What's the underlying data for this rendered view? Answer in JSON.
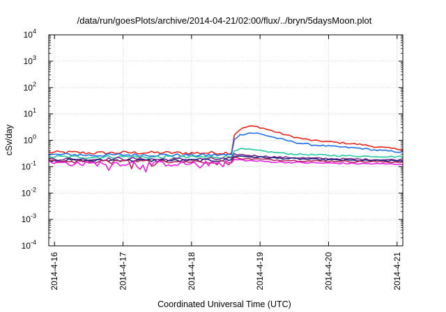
{
  "chart_data": {
    "type": "line",
    "title": "/data/run/goesPlots/archive/2014-04-21/02:00/flux/../bryn/5daysMoon.plot",
    "xlabel": "Coordinated Universal Time (UTC)",
    "ylabel": "cSv/day",
    "yscale": "log",
    "ylim": [
      0.0001,
      10000
    ],
    "y_ticks": [
      {
        "base": "10",
        "exp": "-4",
        "value": 0.0001
      },
      {
        "base": "10",
        "exp": "-3",
        "value": 0.001
      },
      {
        "base": "10",
        "exp": "-2",
        "value": 0.01
      },
      {
        "base": "10",
        "exp": "-1",
        "value": 0.1
      },
      {
        "base": "10",
        "exp": "0",
        "value": 1
      },
      {
        "base": "10",
        "exp": "1",
        "value": 10
      },
      {
        "base": "10",
        "exp": "2",
        "value": 100
      },
      {
        "base": "10",
        "exp": "3",
        "value": 1000
      },
      {
        "base": "10",
        "exp": "4",
        "value": 10000
      }
    ],
    "xlim": [
      "2014-04-15T22:00",
      "2014-04-21T02:00"
    ],
    "x_ticks": [
      {
        "label": "2014-4-16",
        "value": "2014-04-16T00:00"
      },
      {
        "label": "2014-4-17",
        "value": "2014-04-17T00:00"
      },
      {
        "label": "2014-4-18",
        "value": "2014-04-18T00:00"
      },
      {
        "label": "2014-4-19",
        "value": "2014-04-19T00:00"
      },
      {
        "label": "2014-4-20",
        "value": "2014-04-20T00:00"
      },
      {
        "label": "2014-4-21",
        "value": "2014-04-21T00:00"
      }
    ],
    "grid": true,
    "legend": "none",
    "series": [
      {
        "color": "#e8231b",
        "points": [
          [
            "2014-04-15T22:00",
            0.35
          ],
          [
            "2014-04-16T06:00",
            0.35
          ],
          [
            "2014-04-16T12:00",
            0.33
          ],
          [
            "2014-04-17T00:00",
            0.34
          ],
          [
            "2014-04-17T12:00",
            0.34
          ],
          [
            "2014-04-18T00:00",
            0.33
          ],
          [
            "2014-04-18T12:00",
            0.34
          ],
          [
            "2014-04-18T14:00",
            0.34
          ],
          [
            "2014-04-18T14:20",
            1.4
          ],
          [
            "2014-04-18T17:00",
            2.6
          ],
          [
            "2014-04-18T20:00",
            3.4
          ],
          [
            "2014-04-18T23:00",
            3.3
          ],
          [
            "2014-04-19T02:00",
            2.7
          ],
          [
            "2014-04-19T06:00",
            2.0
          ],
          [
            "2014-04-19T10:00",
            1.5
          ],
          [
            "2014-04-19T14:00",
            1.2
          ],
          [
            "2014-04-19T18:00",
            1.0
          ],
          [
            "2014-04-20T00:00",
            0.88
          ],
          [
            "2014-04-20T06:00",
            0.78
          ],
          [
            "2014-04-20T12:00",
            0.68
          ],
          [
            "2014-04-20T16:00",
            0.58
          ],
          [
            "2014-04-20T20:00",
            0.52
          ],
          [
            "2014-04-21T00:00",
            0.47
          ],
          [
            "2014-04-21T02:00",
            0.46
          ]
        ]
      },
      {
        "color": "#1f6fe8",
        "points": [
          [
            "2014-04-15T22:00",
            0.28
          ],
          [
            "2014-04-16T06:00",
            0.29
          ],
          [
            "2014-04-16T12:00",
            0.27
          ],
          [
            "2014-04-17T00:00",
            0.28
          ],
          [
            "2014-04-17T12:00",
            0.28
          ],
          [
            "2014-04-18T00:00",
            0.27
          ],
          [
            "2014-04-18T12:00",
            0.28
          ],
          [
            "2014-04-18T14:00",
            0.28
          ],
          [
            "2014-04-18T14:20",
            1.0
          ],
          [
            "2014-04-18T17:00",
            1.6
          ],
          [
            "2014-04-18T20:00",
            1.9
          ],
          [
            "2014-04-18T23:00",
            1.85
          ],
          [
            "2014-04-19T02:00",
            1.55
          ],
          [
            "2014-04-19T06:00",
            1.2
          ],
          [
            "2014-04-19T10:00",
            0.95
          ],
          [
            "2014-04-19T14:00",
            0.78
          ],
          [
            "2014-04-19T18:00",
            0.68
          ],
          [
            "2014-04-20T00:00",
            0.6
          ],
          [
            "2014-04-20T06:00",
            0.54
          ],
          [
            "2014-04-20T12:00",
            0.49
          ],
          [
            "2014-04-20T16:00",
            0.43
          ],
          [
            "2014-04-20T20:00",
            0.4
          ],
          [
            "2014-04-21T00:00",
            0.37
          ],
          [
            "2014-04-21T02:00",
            0.36
          ]
        ]
      },
      {
        "color": "#23c7a0",
        "points": [
          [
            "2014-04-15T22:00",
            0.24
          ],
          [
            "2014-04-16T12:00",
            0.23
          ],
          [
            "2014-04-17T00:00",
            0.24
          ],
          [
            "2014-04-17T12:00",
            0.23
          ],
          [
            "2014-04-18T00:00",
            0.23
          ],
          [
            "2014-04-18T14:00",
            0.24
          ],
          [
            "2014-04-18T14:20",
            0.42
          ],
          [
            "2014-04-18T18:00",
            0.47
          ],
          [
            "2014-04-19T00:00",
            0.4
          ],
          [
            "2014-04-19T06:00",
            0.34
          ],
          [
            "2014-04-19T12:00",
            0.3
          ],
          [
            "2014-04-20T00:00",
            0.27
          ],
          [
            "2014-04-20T12:00",
            0.25
          ],
          [
            "2014-04-21T00:00",
            0.24
          ],
          [
            "2014-04-21T02:00",
            0.24
          ]
        ]
      },
      {
        "color": "#7a2a8a",
        "points": [
          [
            "2014-04-15T22:00",
            0.2
          ],
          [
            "2014-04-16T12:00",
            0.19
          ],
          [
            "2014-04-17T00:00",
            0.2
          ],
          [
            "2014-04-17T12:00",
            0.19
          ],
          [
            "2014-04-18T00:00",
            0.19
          ],
          [
            "2014-04-18T14:00",
            0.2
          ],
          [
            "2014-04-18T14:20",
            0.3
          ],
          [
            "2014-04-18T20:00",
            0.27
          ],
          [
            "2014-04-19T06:00",
            0.23
          ],
          [
            "2014-04-19T18:00",
            0.21
          ],
          [
            "2014-04-20T12:00",
            0.19
          ],
          [
            "2014-04-21T02:00",
            0.18
          ]
        ]
      },
      {
        "color": "#1a1f7a",
        "points": [
          [
            "2014-04-15T22:00",
            0.18
          ],
          [
            "2014-04-16T12:00",
            0.17
          ],
          [
            "2014-04-17T00:00",
            0.18
          ],
          [
            "2014-04-17T12:00",
            0.17
          ],
          [
            "2014-04-18T00:00",
            0.17
          ],
          [
            "2014-04-18T14:00",
            0.18
          ],
          [
            "2014-04-18T14:20",
            0.26
          ],
          [
            "2014-04-18T20:00",
            0.24
          ],
          [
            "2014-04-19T06:00",
            0.21
          ],
          [
            "2014-04-19T18:00",
            0.19
          ],
          [
            "2014-04-20T12:00",
            0.17
          ],
          [
            "2014-04-21T02:00",
            0.165
          ]
        ]
      },
      {
        "color": "#b8255a",
        "points": [
          [
            "2014-04-15T22:00",
            0.16
          ],
          [
            "2014-04-16T12:00",
            0.155
          ],
          [
            "2014-04-17T00:00",
            0.16
          ],
          [
            "2014-04-17T12:00",
            0.155
          ],
          [
            "2014-04-18T00:00",
            0.155
          ],
          [
            "2014-04-18T14:00",
            0.16
          ],
          [
            "2014-04-18T14:20",
            0.22
          ],
          [
            "2014-04-18T20:00",
            0.2
          ],
          [
            "2014-04-19T06:00",
            0.18
          ],
          [
            "2014-04-19T18:00",
            0.165
          ],
          [
            "2014-04-20T12:00",
            0.155
          ],
          [
            "2014-04-21T02:00",
            0.15
          ]
        ]
      },
      {
        "color": "#e81ee0",
        "points": [
          [
            "2014-04-15T22:00",
            0.14
          ],
          [
            "2014-04-16T12:00",
            0.13
          ],
          [
            "2014-04-17T00:00",
            0.135
          ],
          [
            "2014-04-17T12:00",
            0.13
          ],
          [
            "2014-04-18T00:00",
            0.13
          ],
          [
            "2014-04-18T14:00",
            0.135
          ],
          [
            "2014-04-18T14:20",
            0.19
          ],
          [
            "2014-04-18T20:00",
            0.17
          ],
          [
            "2014-04-19T06:00",
            0.15
          ],
          [
            "2014-04-19T18:00",
            0.14
          ],
          [
            "2014-04-20T12:00",
            0.13
          ],
          [
            "2014-04-21T02:00",
            0.125
          ]
        ]
      }
    ]
  }
}
